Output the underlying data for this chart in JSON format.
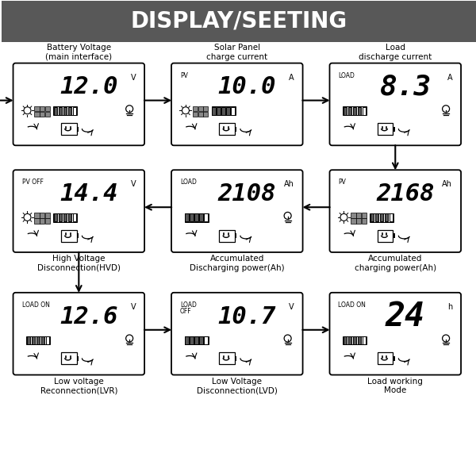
{
  "title": "DISPLAY/SEETING",
  "title_bg": "#585858",
  "title_color": "#ffffff",
  "bg_color": "#ffffff",
  "boxes": [
    {
      "id": "batt",
      "col": 0,
      "row": 0,
      "label_top": "Battery Voltage\n(main interface)",
      "label_bot": "",
      "prefix": "",
      "value": "12.0",
      "unit": "V",
      "has_sun": true,
      "has_panel": true,
      "has_charge_bar": true,
      "has_bulb": true,
      "has_battery": true,
      "has_arrow_left": true,
      "has_arrow_right": true
    },
    {
      "id": "solar",
      "col": 1,
      "row": 0,
      "label_top": "Solar Panel\ncharge current",
      "label_bot": "",
      "prefix": "PV",
      "value": "10.0",
      "unit": "A",
      "has_sun": true,
      "has_panel": true,
      "has_charge_bar": true,
      "has_bulb": false,
      "has_battery": true,
      "has_arrow_left": true,
      "has_arrow_right": false
    },
    {
      "id": "load_dc",
      "col": 2,
      "row": 0,
      "label_top": "Load\ndischarge current",
      "label_bot": "",
      "prefix": "LOAD",
      "value": "8.3",
      "unit": "A",
      "has_sun": false,
      "has_panel": false,
      "has_charge_bar": true,
      "has_bulb": true,
      "has_battery": true,
      "has_arrow_left": false,
      "has_arrow_right": true
    },
    {
      "id": "hvd",
      "col": 0,
      "row": 1,
      "label_top": "",
      "label_bot": "High Voltage\nDisconnection(HVD)",
      "prefix": "PV OFF",
      "value": "14.4",
      "unit": "V",
      "has_sun": true,
      "has_panel": true,
      "has_charge_bar": true,
      "has_bulb": false,
      "has_battery": true,
      "has_arrow_left": false,
      "has_arrow_right": false
    },
    {
      "id": "acc_dis",
      "col": 1,
      "row": 1,
      "label_top": "",
      "label_bot": "Accumulated\nDischarging power(Ah)",
      "prefix": "LOAD",
      "value": "2108",
      "unit": "Ah",
      "has_sun": false,
      "has_panel": false,
      "has_charge_bar": true,
      "has_bulb": true,
      "has_battery": true,
      "has_arrow_left": false,
      "has_arrow_right": true
    },
    {
      "id": "acc_chg",
      "col": 2,
      "row": 1,
      "label_top": "",
      "label_bot": "Accumulated\ncharging power(Ah)",
      "prefix": "PV",
      "value": "2168",
      "unit": "Ah",
      "has_sun": true,
      "has_panel": true,
      "has_charge_bar": true,
      "has_bulb": false,
      "has_battery": true,
      "has_arrow_left": false,
      "has_arrow_right": false
    },
    {
      "id": "lvr",
      "col": 0,
      "row": 2,
      "label_top": "",
      "label_bot": "Low voltage\nReconnection(LVR)",
      "prefix": "LOAD ON",
      "value": "12.6",
      "unit": "V",
      "has_sun": false,
      "has_panel": false,
      "has_charge_bar": true,
      "has_bulb": true,
      "has_battery": true,
      "has_arrow_left": false,
      "has_arrow_right": true
    },
    {
      "id": "lvd",
      "col": 1,
      "row": 2,
      "label_top": "",
      "label_bot": "Low Voltage\nDisconnection(LVD)",
      "prefix2": "LOAD\nOFF",
      "value": "10.7",
      "unit": "V",
      "has_sun": false,
      "has_panel": false,
      "has_charge_bar": true,
      "has_bulb": true,
      "has_battery": true,
      "has_arrow_left": false,
      "has_arrow_right": true
    },
    {
      "id": "lwm",
      "col": 2,
      "row": 2,
      "label_top": "",
      "label_bot": "Load working\nMode",
      "prefix": "LOAD ON",
      "value": "24",
      "unit": "h",
      "has_sun": false,
      "has_panel": false,
      "has_charge_bar": true,
      "has_bulb": true,
      "has_battery": true,
      "has_arrow_left": false,
      "has_arrow_right": false
    }
  ]
}
